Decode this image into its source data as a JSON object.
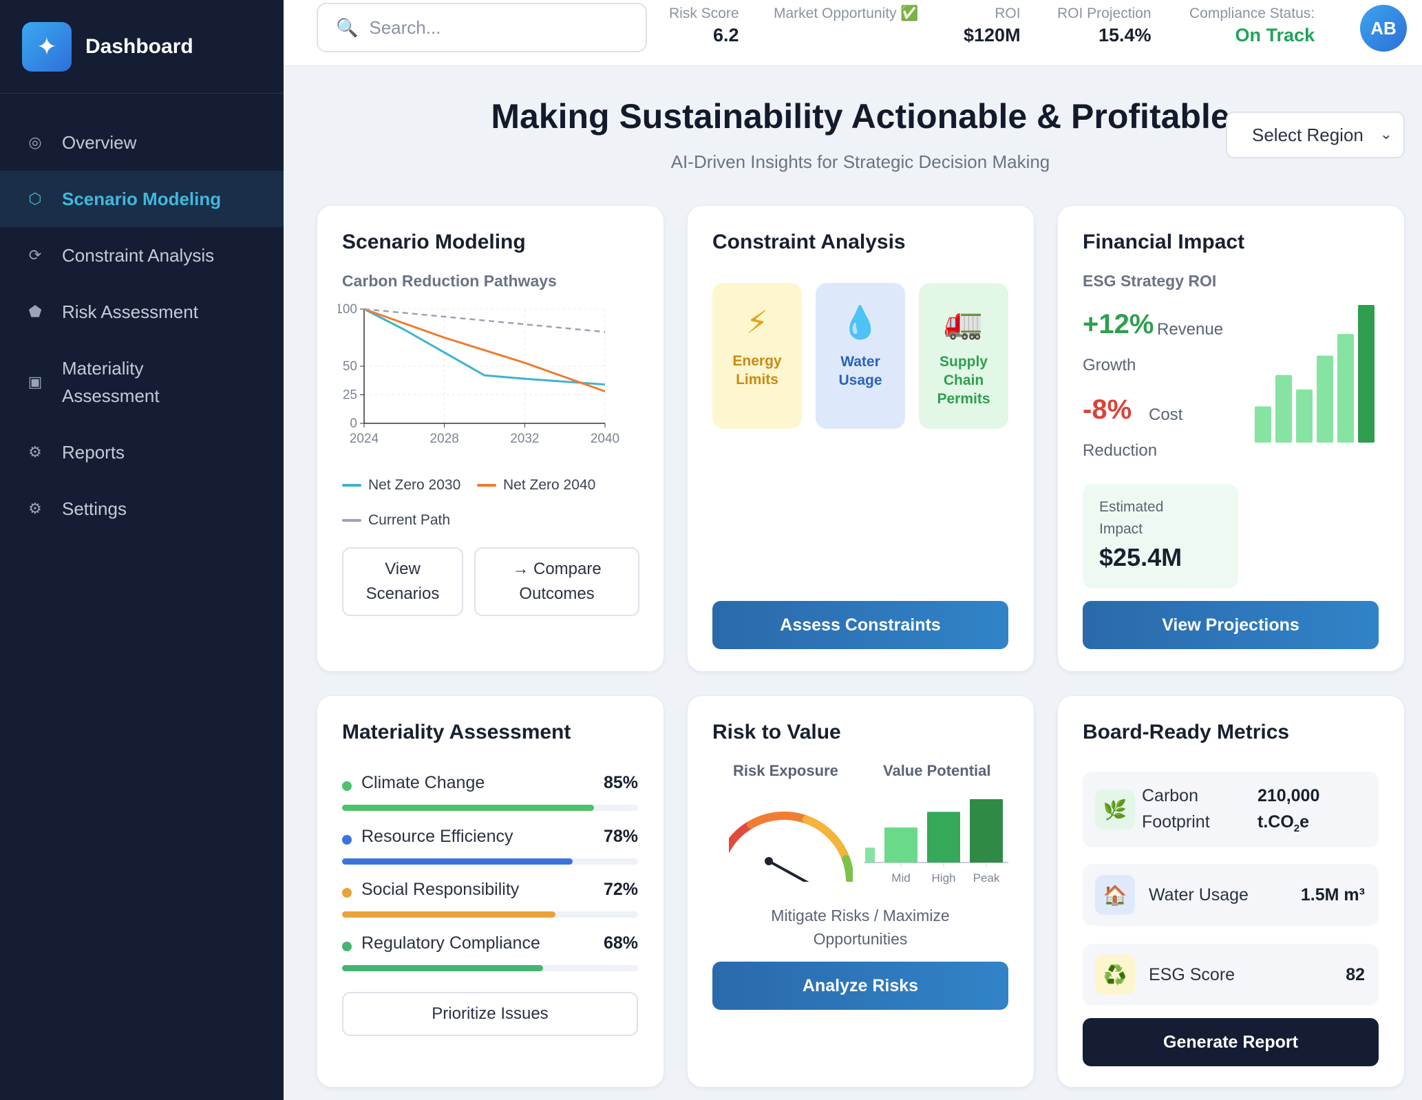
{
  "sidebar": {
    "brand": "Dashboard",
    "brand_icon": "sparkle-icon",
    "items": [
      {
        "label": "Overview",
        "icon": "target-icon",
        "glyph": "◎"
      },
      {
        "label": "Scenario Modeling",
        "icon": "hexagon-icon",
        "glyph": "⬡"
      },
      {
        "label": "Constraint Analysis",
        "icon": "refresh-icon",
        "glyph": "⟳"
      },
      {
        "label": "Risk Assessment",
        "icon": "pentagon-icon",
        "glyph": "⬟"
      },
      {
        "label": "Materiality Assessment",
        "icon": "square-icon",
        "glyph": "▣"
      },
      {
        "label": "Reports",
        "icon": "gear-icon",
        "glyph": "⚙"
      },
      {
        "label": "Settings",
        "icon": "gear-icon",
        "glyph": "⚙"
      }
    ],
    "active_index": 1
  },
  "header": {
    "search_placeholder": "Search...",
    "metrics": [
      {
        "label": "Risk Score",
        "value": "6.2"
      },
      {
        "label": "Market Opportunity ✅",
        "value": ""
      },
      {
        "label": "ROI",
        "value": "$120M"
      },
      {
        "label": "ROI Projection",
        "value": "15.4%"
      },
      {
        "label": "Compliance Status:",
        "value": "On Track"
      }
    ],
    "avatar_initials": "AB"
  },
  "hero": {
    "title": "Making Sustainability Actionable & Profitable",
    "subtitle": "AI-Driven Insights for Strategic Decision Making",
    "region_select": "Select Region"
  },
  "scenario": {
    "title": "Scenario Modeling",
    "subtitle": "Carbon Reduction Pathways",
    "view_button": "View Scenarios",
    "compare_button": "→ Compare Outcomes"
  },
  "chart_data": [
    {
      "type": "line",
      "title": "Carbon Reduction Pathways",
      "x_ticks": [
        "2024",
        "2028",
        "2032",
        "2040"
      ],
      "y_ticks": [
        0,
        25,
        50,
        100
      ],
      "ylim": [
        0,
        100
      ],
      "xlim": [
        2024,
        2036
      ],
      "grid": true,
      "legend": "bottom",
      "series": [
        {
          "name": "Net Zero 2030",
          "color": "#3fb3cf",
          "x": [
            2024,
            2026,
            2028,
            2030,
            2032,
            2036
          ],
          "y": [
            100,
            82,
            62,
            42,
            39,
            34
          ]
        },
        {
          "name": "Net Zero 2040",
          "color": "#ef7a30",
          "x": [
            2024,
            2028,
            2032,
            2036
          ],
          "y": [
            100,
            75,
            53,
            28
          ]
        },
        {
          "name": "Current Path",
          "color": "#9aa3b2",
          "x": [
            2024,
            2036
          ],
          "y": [
            100,
            80
          ]
        }
      ]
    },
    {
      "type": "bar",
      "title": "ESG Strategy ROI",
      "values": [
        30,
        56,
        44,
        72,
        90,
        114
      ],
      "colors": [
        "#86e3a1",
        "#86e3a1",
        "#86e3a1",
        "#86e3a1",
        "#86e3a1",
        "#2f9e4f"
      ]
    },
    {
      "type": "bar",
      "title": "Value Potential",
      "categories": [
        "",
        "Mid",
        "High",
        "Peak"
      ],
      "values": [
        20,
        47,
        68,
        85
      ],
      "colors": [
        "#86e3a1",
        "#6ad98a",
        "#35a85a",
        "#2f8a45"
      ]
    }
  ],
  "constraints": {
    "title": "Constraint Analysis",
    "tiles": [
      {
        "label": "Energy Limits",
        "icon": "lightning-icon",
        "glyph": "⚡",
        "bg": "#fef6cf",
        "color": "#c98a12"
      },
      {
        "label": "Water Usage",
        "icon": "water-drop-icon",
        "glyph": "💧",
        "bg": "#dde9fb",
        "color": "#2c62b8"
      },
      {
        "label": "Supply Chain Permits",
        "icon": "truck-icon",
        "glyph": "🚛",
        "bg": "#e2f7e6",
        "color": "#2f9e4f"
      }
    ],
    "button": "Assess Constraints"
  },
  "financial": {
    "title": "Financial Impact",
    "subtitle": "ESG Strategy ROI",
    "revenue_value": "+12%",
    "revenue_label": "Revenue",
    "revenue_label2": "Growth",
    "cost_value": "-8%",
    "cost_label": "Cost",
    "cost_label2": "Reduction",
    "estimate_label": "Estimated Impact",
    "estimate_value": "$25.4M",
    "button": "View Projections"
  },
  "materiality": {
    "title": "Materiality Assessment",
    "items": [
      {
        "label": "Climate Change",
        "pct": "85%",
        "value": 85,
        "color": "#4cc36a"
      },
      {
        "label": "Resource Efficiency",
        "pct": "78%",
        "value": 78,
        "color": "#3b73dd"
      },
      {
        "label": "Social Responsibility",
        "pct": "72%",
        "value": 72,
        "color": "#eaa23a"
      },
      {
        "label": "Regulatory Compliance",
        "pct": "68%",
        "value": 68,
        "color": "#43b56e"
      }
    ],
    "button": "Prioritize Issues"
  },
  "risk": {
    "title": "Risk to Value",
    "exposure_label": "Risk Exposure",
    "potential_label": "Value Potential",
    "gauge_value": 35,
    "caption": "Mitigate Risks / Maximize Opportunities",
    "button": "Analyze Risks"
  },
  "board": {
    "title": "Board-Ready Metrics",
    "rows": [
      {
        "label": "Carbon Footprint",
        "value": "210,000",
        "unit": "t.CO",
        "sub": "2",
        "unit_end": "e",
        "icon": "leaf-icon",
        "glyph": "🌿",
        "bg": "#e3f6e8"
      },
      {
        "label": "Water Usage",
        "value": "1.5M m³",
        "icon": "house-icon",
        "glyph": "🏠",
        "bg": "#dfe9fa"
      },
      {
        "label": "ESG Score",
        "value": "82",
        "icon": "recycle-icon",
        "glyph": "♻️",
        "bg": "#fdf5cd"
      }
    ],
    "button": "Generate Report"
  }
}
